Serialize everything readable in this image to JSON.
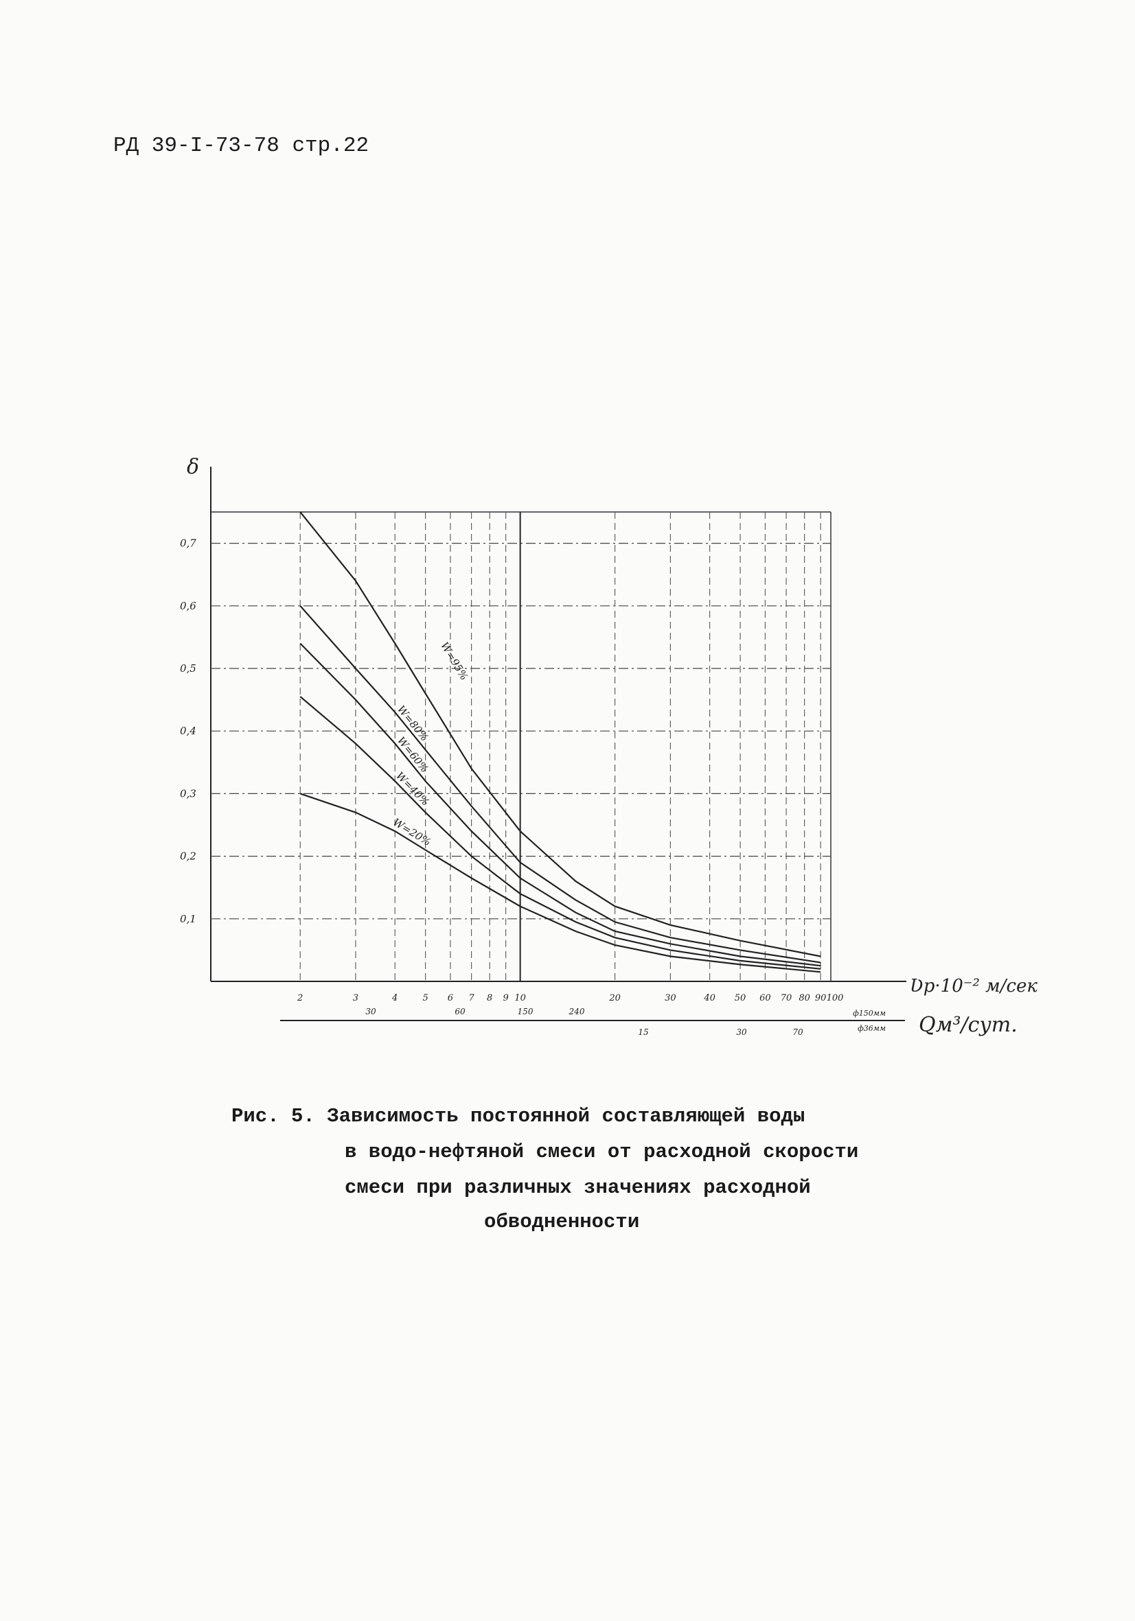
{
  "header": "РД 39-I-73-78 стр.22",
  "chart_data": {
    "type": "line",
    "y_label": "δ",
    "x_label": "Ʋр·10⁻² м/сек",
    "q_label": "Qм³/сут.",
    "log_x": true,
    "grid": true,
    "xlim": [
      1.04,
      97
    ],
    "ylim": [
      0,
      0.75
    ],
    "xticks": [
      2,
      3,
      4,
      5,
      6,
      7,
      8,
      9,
      10,
      20,
      30,
      40,
      50,
      60,
      70,
      80,
      90,
      100
    ],
    "yticks": [
      {
        "value": 0.1,
        "label": "0,1"
      },
      {
        "value": 0.2,
        "label": "0,2"
      },
      {
        "value": 0.3,
        "label": "0,3"
      },
      {
        "value": 0.4,
        "label": "0,4"
      },
      {
        "value": 0.5,
        "label": "0,5"
      },
      {
        "value": 0.6,
        "label": "0,6"
      },
      {
        "value": 0.7,
        "label": "0,7"
      }
    ],
    "q_row1": [
      "30",
      "60",
      "150",
      "240"
    ],
    "q_row2": [
      "15",
      "30",
      "70"
    ],
    "q_diam": [
      "ф150мм",
      "ф36мм"
    ],
    "x": [
      2,
      3,
      4,
      5,
      7,
      10,
      15,
      20,
      30,
      50,
      90
    ],
    "series": [
      {
        "name": "W=95%",
        "color": "#222222",
        "values": [
          0.75,
          0.64,
          0.54,
          0.46,
          0.34,
          0.24,
          0.16,
          0.12,
          0.09,
          0.065,
          0.04
        ]
      },
      {
        "name": "W=80%",
        "color": "#222222",
        "values": [
          0.6,
          0.5,
          0.43,
          0.37,
          0.28,
          0.19,
          0.13,
          0.095,
          0.07,
          0.05,
          0.03
        ]
      },
      {
        "name": "W=60%",
        "color": "#222222",
        "values": [
          0.54,
          0.45,
          0.38,
          0.32,
          0.24,
          0.165,
          0.11,
          0.08,
          0.06,
          0.04,
          0.025
        ]
      },
      {
        "name": "W=40%",
        "color": "#222222",
        "values": [
          0.455,
          0.38,
          0.32,
          0.27,
          0.2,
          0.14,
          0.095,
          0.07,
          0.05,
          0.033,
          0.02
        ]
      },
      {
        "name": "W=20%",
        "color": "#222222",
        "values": [
          0.3,
          0.27,
          0.24,
          0.21,
          0.165,
          0.12,
          0.08,
          0.058,
          0.04,
          0.027,
          0.015
        ]
      }
    ]
  },
  "caption": [
    "Рис. 5. Зависимость постоянной составляющей воды",
    "в водо-нефтяной смеси от расходной скорости",
    "смеси при различных значениях расходной",
    "обводненности"
  ]
}
